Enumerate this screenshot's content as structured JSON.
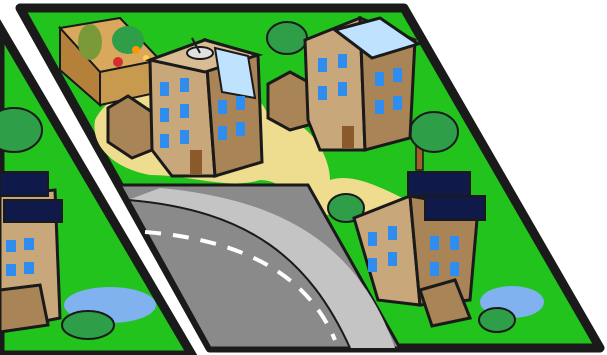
{
  "scene": {
    "description_text": "",
    "colors": {
      "grass": "#22c31c",
      "outline": "#1a1a1a",
      "path": "#eedc8f",
      "road": "#8a8a8a",
      "road_light": "#c4c4c4",
      "building_front": "#c8a77a",
      "building_side": "#a88457",
      "building_roof": "#d9bd92",
      "window": "#2f8df0",
      "glass": "#bfe3ff",
      "tree": "#2f9e49",
      "tree_dark": "#1f7a35",
      "trunk": "#a0602a",
      "water": "#7fb2ee",
      "solar": "#0f1a4a"
    },
    "icons": [
      "tree-icon",
      "satellite-dish-icon",
      "solar-panel-icon",
      "greenhouse-icon",
      "pond-icon"
    ]
  }
}
